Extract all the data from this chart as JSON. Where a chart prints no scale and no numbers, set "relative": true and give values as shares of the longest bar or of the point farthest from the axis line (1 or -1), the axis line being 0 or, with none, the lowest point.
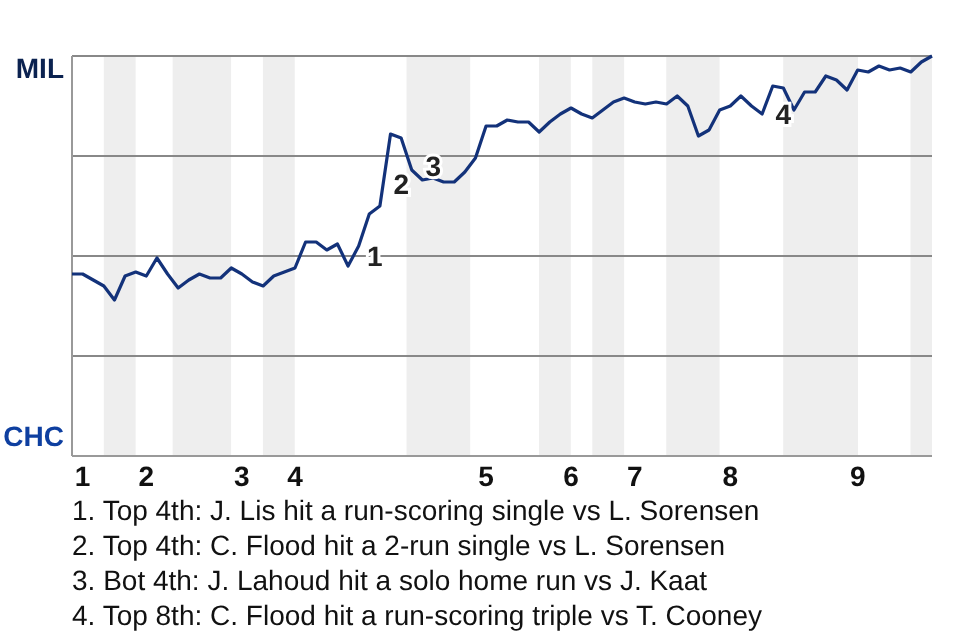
{
  "chart_data": {
    "type": "line",
    "relative": true,
    "categories": [
      null,
      "1",
      null,
      null,
      null,
      null,
      null,
      "2",
      null,
      null,
      null,
      null,
      null,
      null,
      null,
      null,
      "3",
      null,
      null,
      null,
      null,
      "4",
      null,
      null,
      null,
      null,
      null,
      null,
      null,
      null,
      null,
      null,
      null,
      null,
      null,
      null,
      null,
      null,
      null,
      "5",
      null,
      null,
      null,
      null,
      null,
      null,
      null,
      "6",
      null,
      null,
      null,
      null,
      null,
      "7",
      null,
      null,
      null,
      null,
      null,
      null,
      null,
      null,
      "8",
      null,
      null,
      null,
      null,
      null,
      null,
      null,
      null,
      null,
      null,
      null,
      "9",
      null,
      null,
      null,
      null,
      null,
      null,
      null
    ],
    "marker": "none",
    "line_style": "solid",
    "ref_lines": [
      {
        "axis": "y",
        "value": 0.5,
        "color": "#888888"
      },
      {
        "axis": "y",
        "value": 0,
        "color": "#888888"
      },
      {
        "axis": "y",
        "value": -0.5,
        "color": "#888888"
      }
    ],
    "series": [
      {
        "color": "#13327a",
        "values": [
          -0.09,
          -0.09,
          -0.12,
          -0.15,
          -0.22,
          -0.1,
          -0.08,
          -0.1,
          -0.01,
          -0.09,
          -0.16,
          -0.12,
          -0.09,
          -0.11,
          -0.11,
          -0.06,
          -0.09,
          -0.13,
          -0.15,
          -0.1,
          -0.08,
          -0.06,
          0.07,
          0.07,
          0.03,
          0.06,
          -0.05,
          0.05,
          0.21,
          0.25,
          0.61,
          0.59,
          0.43,
          0.38,
          0.39,
          0.37,
          0.37,
          0.42,
          0.49,
          0.65,
          0.65,
          0.68,
          0.67,
          0.67,
          0.62,
          0.67,
          0.71,
          0.74,
          0.71,
          0.69,
          0.73,
          0.77,
          0.79,
          0.77,
          0.76,
          0.77,
          0.76,
          0.8,
          0.75,
          0.6,
          0.63,
          0.73,
          0.75,
          0.8,
          0.75,
          0.71,
          0.85,
          0.84,
          0.73,
          0.82,
          0.82,
          0.9,
          0.88,
          0.83,
          0.93,
          0.92,
          0.95,
          0.93,
          0.94,
          0.92,
          0.97,
          1
        ]
      }
    ],
    "annotations": [
      "MIL",
      "CHC",
      "1",
      "2",
      "3",
      "4",
      "1. Top 4th: J. Lis hit a run-scoring single vs L. Sorensen",
      "2. Top 4th: C. Flood hit a 2-run single vs L. Sorensen",
      "3. Bot 4th: J. Lahoud hit a solo home run vs J. Kaat",
      "4. Top 8th: C. Flood hit a run-scoring triple vs T. Cooney"
    ]
  }
}
